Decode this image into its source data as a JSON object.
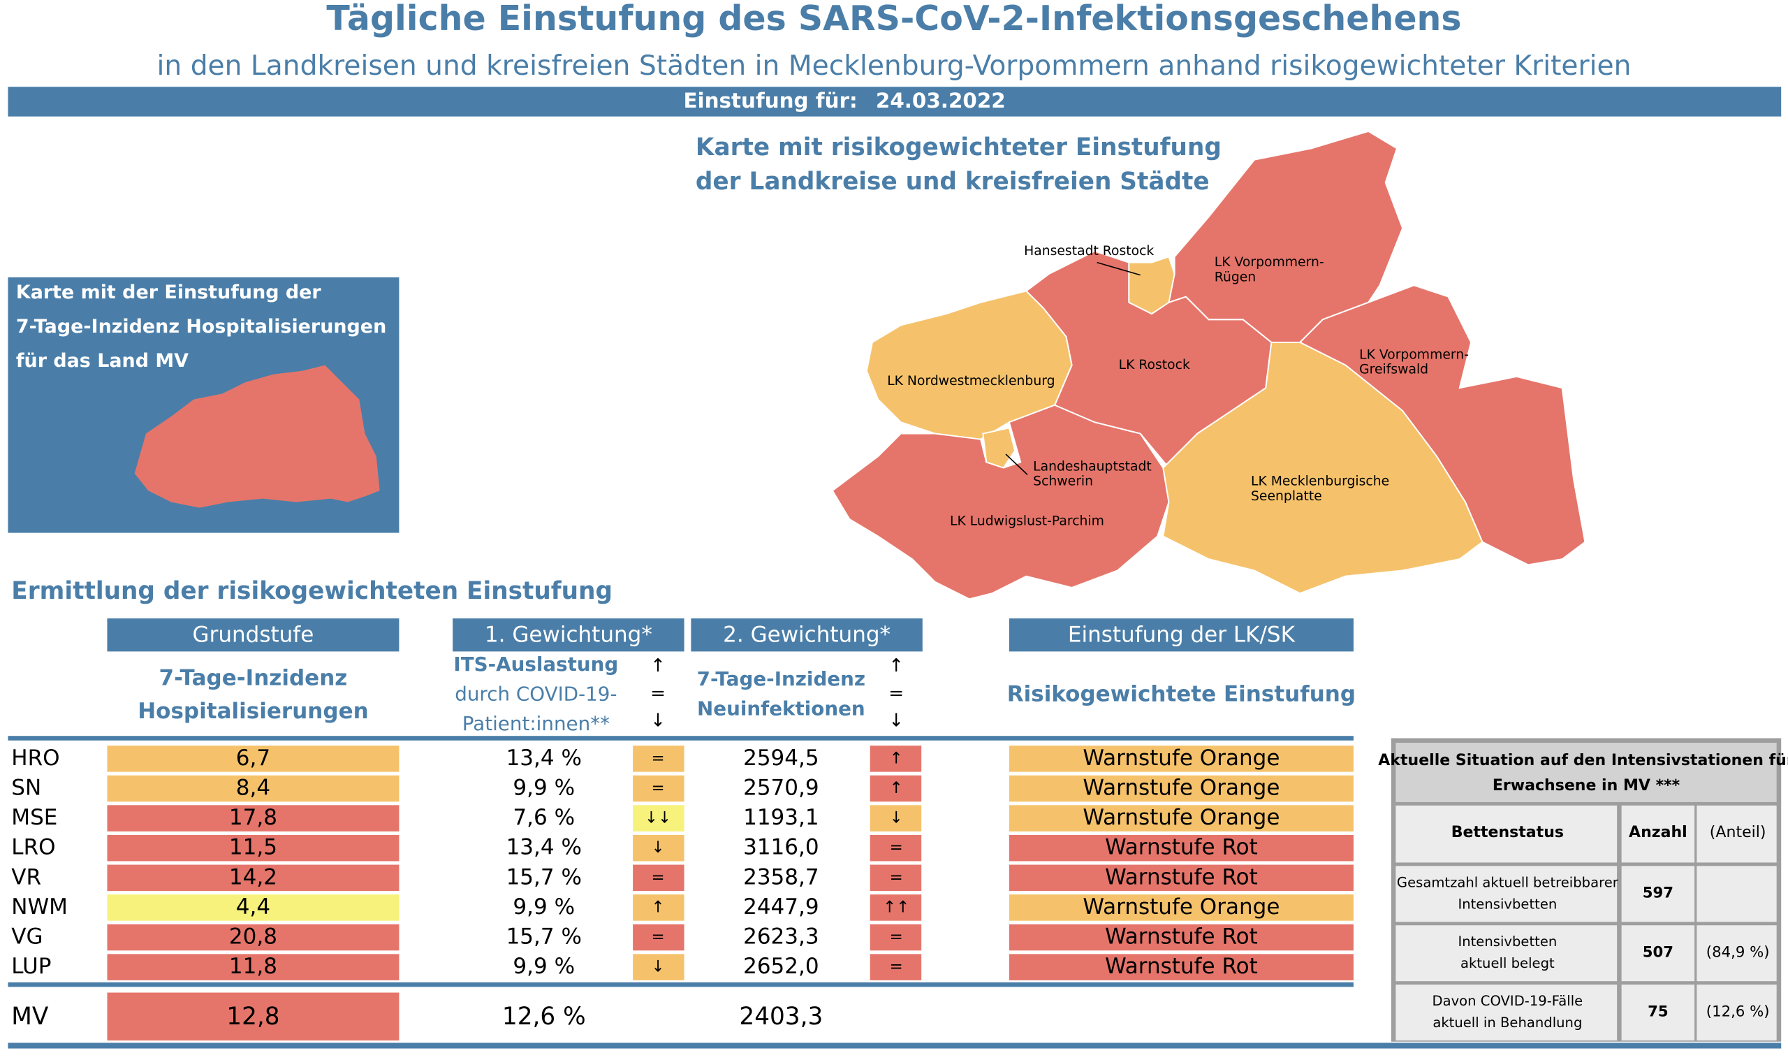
{
  "header": {
    "title": "Tägliche Einstufung des SARS-CoV-2-Infektionsgeschehens",
    "subtitle": "in den Landkreisen und kreisfreien Städten in Mecklenburg-Vorpommern anhand risikogewichteter Kriterien",
    "date_label": "Einstufung für:",
    "date": "24.03.2022"
  },
  "map": {
    "title_lines": [
      "Karte mit risikogewichteter Einstufung",
      "der Landkreise und kreisfreien Städte"
    ],
    "regions": [
      {
        "label_lines": [
          "LK Nordwestmecklenburg"
        ],
        "color": "#f5c26b"
      },
      {
        "label_lines": [
          "LK Ludwigslust-Parchim"
        ],
        "color": "#e5756a"
      },
      {
        "label_lines": [
          "LK Rostock"
        ],
        "color": "#e5756a"
      },
      {
        "label_lines": [
          "LK Vorpommern-",
          "Rügen"
        ],
        "color": "#e5756a"
      },
      {
        "label_lines": [
          "LK Vorpommern-",
          "Greifswald"
        ],
        "color": "#e5756a"
      },
      {
        "label_lines": [
          "LK Mecklenburgische",
          "Seenplatte"
        ],
        "color": "#f5c26b"
      },
      {
        "label_lines": [
          "Landeshauptstadt",
          "Schwerin"
        ],
        "color": "#f5c26b"
      },
      {
        "label_lines": [
          "Hansestadt Rostock"
        ],
        "color": "#f5c26b"
      }
    ]
  },
  "inset": {
    "lines": [
      "Karte mit der Einstufung der",
      "7-Tage-Inzidenz Hospitalisierungen",
      "für das Land MV"
    ],
    "color": "#e5756a"
  },
  "section_title": "Ermittlung der risikogewichteten Einstufung",
  "table": {
    "group_headers": [
      "Grundstufe",
      "1. Gewichtung*",
      "2. Gewichtung*",
      "Einstufung der LK/SK"
    ],
    "hosp_header": [
      "7-Tage-Inzidenz",
      "Hospitalisierungen"
    ],
    "its_header": [
      "ITS-Auslastung",
      "durch COVID-19-",
      "Patient:innen**"
    ],
    "incidence_header": [
      "7-Tage-Inzidenz",
      "Neuinfektionen"
    ],
    "level_header": "Risikogewichtete Einstufung",
    "trend_legend": [
      "↑",
      "=",
      "↓"
    ],
    "rows": [
      {
        "kreis": "HRO",
        "hosp": "6,7",
        "hosp_color": "#f5c26b",
        "its": "13,4 %",
        "its_trend": "=",
        "its_trend_color": "#f5c26b",
        "incidence": "2594,5",
        "incidence_trend": "↑",
        "incidence_trend_color": "#e5756a",
        "level": "Warnstufe Orange",
        "level_color": "#f5c26b"
      },
      {
        "kreis": "SN",
        "hosp": "8,4",
        "hosp_color": "#f5c26b",
        "its": "9,9 %",
        "its_trend": "=",
        "its_trend_color": "#f5c26b",
        "incidence": "2570,9",
        "incidence_trend": "↑",
        "incidence_trend_color": "#e5756a",
        "level": "Warnstufe Orange",
        "level_color": "#f5c26b"
      },
      {
        "kreis": "MSE",
        "hosp": "17,8",
        "hosp_color": "#e5756a",
        "its": "7,6 %",
        "its_trend": "↓↓",
        "its_trend_color": "#f7f27b",
        "incidence": "1193,1",
        "incidence_trend": "↓",
        "incidence_trend_color": "#f5c26b",
        "level": "Warnstufe Orange",
        "level_color": "#f5c26b"
      },
      {
        "kreis": "LRO",
        "hosp": "11,5",
        "hosp_color": "#e5756a",
        "its": "13,4 %",
        "its_trend": "↓",
        "its_trend_color": "#f5c26b",
        "incidence": "3116,0",
        "incidence_trend": "=",
        "incidence_trend_color": "#e5756a",
        "level": "Warnstufe Rot",
        "level_color": "#e5756a"
      },
      {
        "kreis": "VR",
        "hosp": "14,2",
        "hosp_color": "#e5756a",
        "its": "15,7 %",
        "its_trend": "=",
        "its_trend_color": "#e5756a",
        "incidence": "2358,7",
        "incidence_trend": "=",
        "incidence_trend_color": "#e5756a",
        "level": "Warnstufe Rot",
        "level_color": "#e5756a"
      },
      {
        "kreis": "NWM",
        "hosp": "4,4",
        "hosp_color": "#f7f27b",
        "its": "9,9 %",
        "its_trend": "↑",
        "its_trend_color": "#f5c26b",
        "incidence": "2447,9",
        "incidence_trend": "↑↑",
        "incidence_trend_color": "#e5756a",
        "level": "Warnstufe Orange",
        "level_color": "#f5c26b"
      },
      {
        "kreis": "VG",
        "hosp": "20,8",
        "hosp_color": "#e5756a",
        "its": "15,7 %",
        "its_trend": "=",
        "its_trend_color": "#e5756a",
        "incidence": "2623,3",
        "incidence_trend": "=",
        "incidence_trend_color": "#e5756a",
        "level": "Warnstufe Rot",
        "level_color": "#e5756a"
      },
      {
        "kreis": "LUP",
        "hosp": "11,8",
        "hosp_color": "#e5756a",
        "its": "9,9 %",
        "its_trend": "↓",
        "its_trend_color": "#f5c26b",
        "incidence": "2652,0",
        "incidence_trend": "=",
        "incidence_trend_color": "#e5756a",
        "level": "Warnstufe Rot",
        "level_color": "#e5756a"
      }
    ],
    "total": {
      "kreis": "MV",
      "hosp": "12,8",
      "hosp_color": "#e5756a",
      "its": "12,6 %",
      "incidence": "2403,3"
    }
  },
  "icu": {
    "title_lines": [
      "Aktuelle Situation auf den Intensivstationen für",
      "Erwachsene in MV ***"
    ],
    "headers": [
      "Bettenstatus",
      "Anzahl",
      "(Anteil)"
    ],
    "rows": [
      {
        "status_lines": [
          "Gesamtzahl aktuell betreibbarer",
          "Intensivbetten"
        ],
        "count": "597"
      },
      {
        "status_lines": [
          "Intensivbetten",
          "aktuell belegt"
        ],
        "count": "507",
        "share": "(84,9 %)"
      },
      {
        "status_lines": [
          "Davon COVID-19-Fälle",
          "aktuell in Behandlung"
        ],
        "count": "75",
        "share": "(12,6 %)"
      }
    ]
  }
}
